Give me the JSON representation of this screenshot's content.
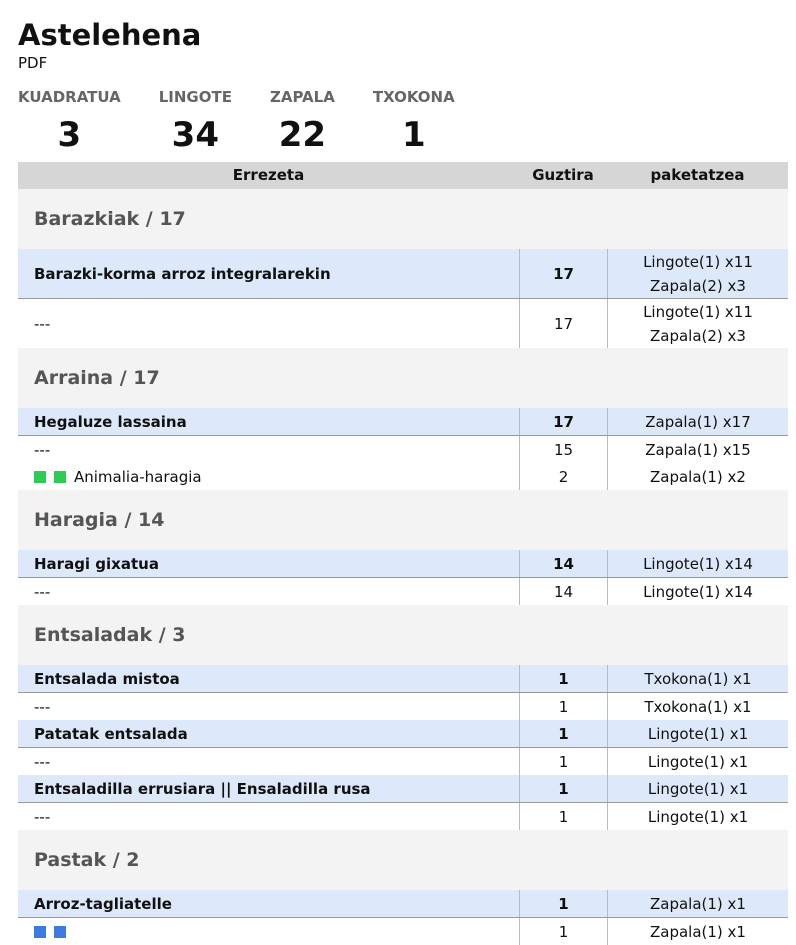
{
  "header": {
    "title": "Astelehena",
    "subtitle": "PDF"
  },
  "summary": [
    {
      "label": "KUADRATUA",
      "value": 3
    },
    {
      "label": "LINGOTE",
      "value": 34
    },
    {
      "label": "ZAPALA",
      "value": 22
    },
    {
      "label": "TXOKONA",
      "value": 1
    }
  ],
  "table": {
    "columns": [
      "Errezeta",
      "Guztira",
      "paketatzea"
    ],
    "sections": [
      {
        "title": "Barazkiak / 17",
        "recipes": [
          {
            "name": "Barazki-korma arroz integralarekin",
            "total": 17,
            "packaging": [
              "Lingote(1) x11",
              "Zapala(2) x3"
            ],
            "variants": [
              {
                "name": "---",
                "total": 17,
                "packaging": [
                  "Lingote(1) x11",
                  "Zapala(2) x3"
                ]
              }
            ]
          }
        ]
      },
      {
        "title": "Arraina / 17",
        "recipes": [
          {
            "name": "Hegaluze lassaina",
            "total": 17,
            "packaging": [
              "Zapala(1) x17"
            ],
            "variants": [
              {
                "name": "---",
                "total": 15,
                "packaging": [
                  "Zapala(1) x15"
                ]
              },
              {
                "markers": [
                  "#2ecc55",
                  "#2ecc55"
                ],
                "name": "Animalia-haragia",
                "total": 2,
                "packaging": [
                  "Zapala(1) x2"
                ]
              }
            ]
          }
        ]
      },
      {
        "title": "Haragia / 14",
        "recipes": [
          {
            "name": "Haragi gixatua",
            "total": 14,
            "packaging": [
              "Lingote(1) x14"
            ],
            "variants": [
              {
                "name": "---",
                "total": 14,
                "packaging": [
                  "Lingote(1) x14"
                ]
              }
            ]
          }
        ]
      },
      {
        "title": "Entsaladak / 3",
        "recipes": [
          {
            "name": "Entsalada mistoa",
            "total": 1,
            "packaging": [
              "Txokona(1) x1"
            ],
            "variants": [
              {
                "name": "---",
                "total": 1,
                "packaging": [
                  "Txokona(1) x1"
                ]
              }
            ]
          },
          {
            "name": "Patatak entsalada",
            "total": 1,
            "packaging": [
              "Lingote(1) x1"
            ],
            "variants": [
              {
                "name": "---",
                "total": 1,
                "packaging": [
                  "Lingote(1) x1"
                ]
              }
            ]
          },
          {
            "name": "Entsaladilla errusiara || Ensaladilla rusa",
            "total": 1,
            "packaging": [
              "Lingote(1) x1"
            ],
            "variants": [
              {
                "name": "---",
                "total": 1,
                "packaging": [
                  "Lingote(1) x1"
                ]
              }
            ]
          }
        ]
      },
      {
        "title": "Pastak / 2",
        "recipes": [
          {
            "name": "Arroz-tagliatelle",
            "total": 1,
            "packaging": [
              "Zapala(1) x1"
            ],
            "variants": [
              {
                "markers": [
                  "#3b7be0",
                  "#3b7be0"
                ],
                "total": 1,
                "packaging": [
                  "Zapala(1) x1"
                ]
              }
            ]
          }
        ]
      }
    ]
  }
}
